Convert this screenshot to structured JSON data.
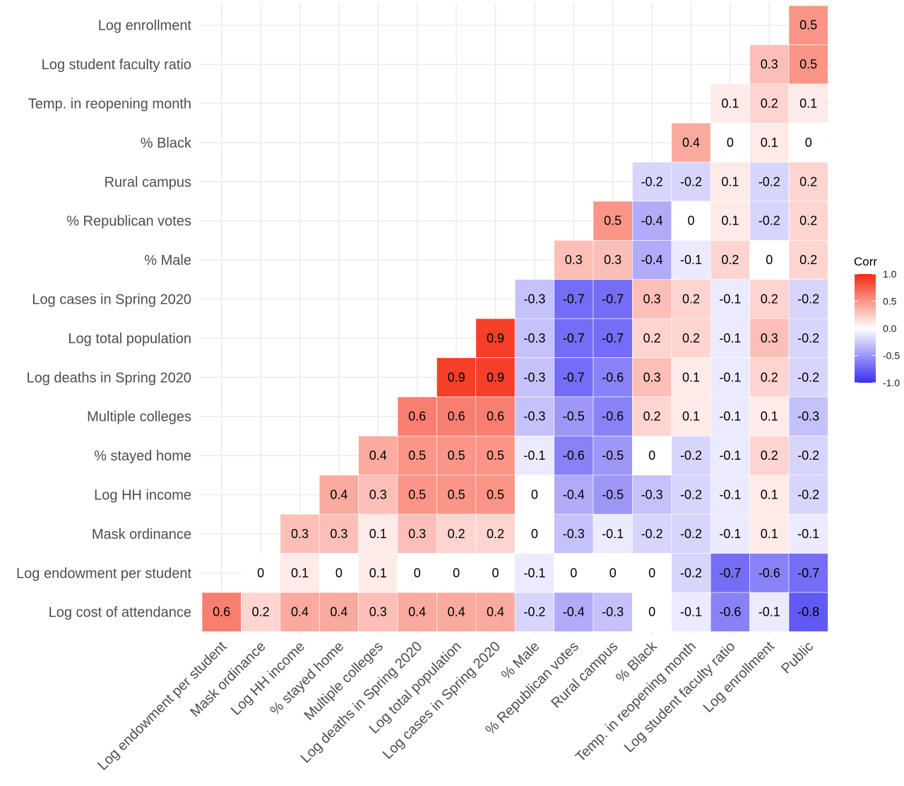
{
  "chart_data": {
    "type": "heatmap",
    "variables": [
      "Log endowment per student",
      "Mask ordinance",
      "Log HH income",
      "% stayed home",
      "Multiple colleges",
      "Log deaths in Spring 2020",
      "Log total population",
      "Log cases in Spring 2020",
      "% Male",
      "% Republican votes",
      "Rural campus",
      "% Black",
      "Temp. in reopening month",
      "Log student faculty ratio",
      "Log enrollment",
      "Public"
    ],
    "y_labels": [
      "Log enrollment",
      "Log student faculty ratio",
      "Temp. in reopening month",
      "% Black",
      "Rural campus",
      "% Republican votes",
      "% Male",
      "Log cases in Spring 2020",
      "Log total population",
      "Log deaths in Spring 2020",
      "Multiple colleges",
      "% stayed home",
      "Log HH income",
      "Mask ordinance",
      "Log endowment per student",
      "Log cost of attendance"
    ],
    "values": [
      [
        null,
        null,
        null,
        null,
        null,
        null,
        null,
        null,
        null,
        null,
        null,
        null,
        null,
        null,
        null,
        0.5
      ],
      [
        null,
        null,
        null,
        null,
        null,
        null,
        null,
        null,
        null,
        null,
        null,
        null,
        null,
        null,
        0.3,
        0.5
      ],
      [
        null,
        null,
        null,
        null,
        null,
        null,
        null,
        null,
        null,
        null,
        null,
        null,
        null,
        0.1,
        0.2,
        0.1
      ],
      [
        null,
        null,
        null,
        null,
        null,
        null,
        null,
        null,
        null,
        null,
        null,
        null,
        0.4,
        0,
        0.1,
        0
      ],
      [
        null,
        null,
        null,
        null,
        null,
        null,
        null,
        null,
        null,
        null,
        null,
        -0.2,
        -0.2,
        0.1,
        -0.2,
        0.2
      ],
      [
        null,
        null,
        null,
        null,
        null,
        null,
        null,
        null,
        null,
        null,
        0.5,
        -0.4,
        0,
        0.1,
        -0.2,
        0.2
      ],
      [
        null,
        null,
        null,
        null,
        null,
        null,
        null,
        null,
        null,
        0.3,
        0.3,
        -0.4,
        -0.1,
        0.2,
        0,
        0.2
      ],
      [
        null,
        null,
        null,
        null,
        null,
        null,
        null,
        null,
        -0.3,
        -0.7,
        -0.7,
        0.3,
        0.2,
        -0.1,
        0.2,
        -0.2
      ],
      [
        null,
        null,
        null,
        null,
        null,
        null,
        null,
        0.9,
        -0.3,
        -0.7,
        -0.7,
        0.2,
        0.2,
        -0.1,
        0.3,
        -0.2
      ],
      [
        null,
        null,
        null,
        null,
        null,
        null,
        0.9,
        0.9,
        -0.3,
        -0.7,
        -0.6,
        0.3,
        0.1,
        -0.1,
        0.2,
        -0.2
      ],
      [
        null,
        null,
        null,
        null,
        null,
        0.6,
        0.6,
        0.6,
        -0.3,
        -0.5,
        -0.6,
        0.2,
        0.1,
        -0.1,
        0.1,
        -0.3
      ],
      [
        null,
        null,
        null,
        null,
        0.4,
        0.5,
        0.5,
        0.5,
        -0.1,
        -0.6,
        -0.5,
        0,
        -0.2,
        -0.1,
        0.2,
        -0.2
      ],
      [
        null,
        null,
        null,
        0.4,
        0.3,
        0.5,
        0.5,
        0.5,
        0,
        -0.4,
        -0.5,
        -0.3,
        -0.2,
        -0.1,
        0.1,
        -0.2
      ],
      [
        null,
        null,
        0.3,
        0.3,
        0.1,
        0.3,
        0.2,
        0.2,
        0,
        -0.3,
        -0.1,
        -0.2,
        -0.2,
        -0.1,
        0.1,
        -0.1
      ],
      [
        null,
        0,
        0.1,
        0,
        0.1,
        0,
        0,
        0,
        -0.1,
        0,
        0,
        0,
        -0.2,
        -0.7,
        -0.6,
        -0.7
      ],
      [
        0.6,
        0.2,
        0.4,
        0.4,
        0.3,
        0.4,
        0.4,
        0.4,
        -0.2,
        -0.4,
        -0.3,
        0,
        -0.1,
        -0.6,
        -0.1,
        -0.8
      ]
    ],
    "value_range": [
      -1,
      1
    ],
    "colors": {
      "low": "#3a2ff0",
      "mid": "#ffffff",
      "high": "#f42a10"
    },
    "legend": {
      "title": "Corr",
      "ticks": [
        "1.0",
        "0.5",
        "0.0",
        "-0.5",
        "-1.0"
      ],
      "tick_values": [
        1,
        0.5,
        0,
        -0.5,
        -1
      ],
      "position": "right"
    },
    "grid": true
  }
}
